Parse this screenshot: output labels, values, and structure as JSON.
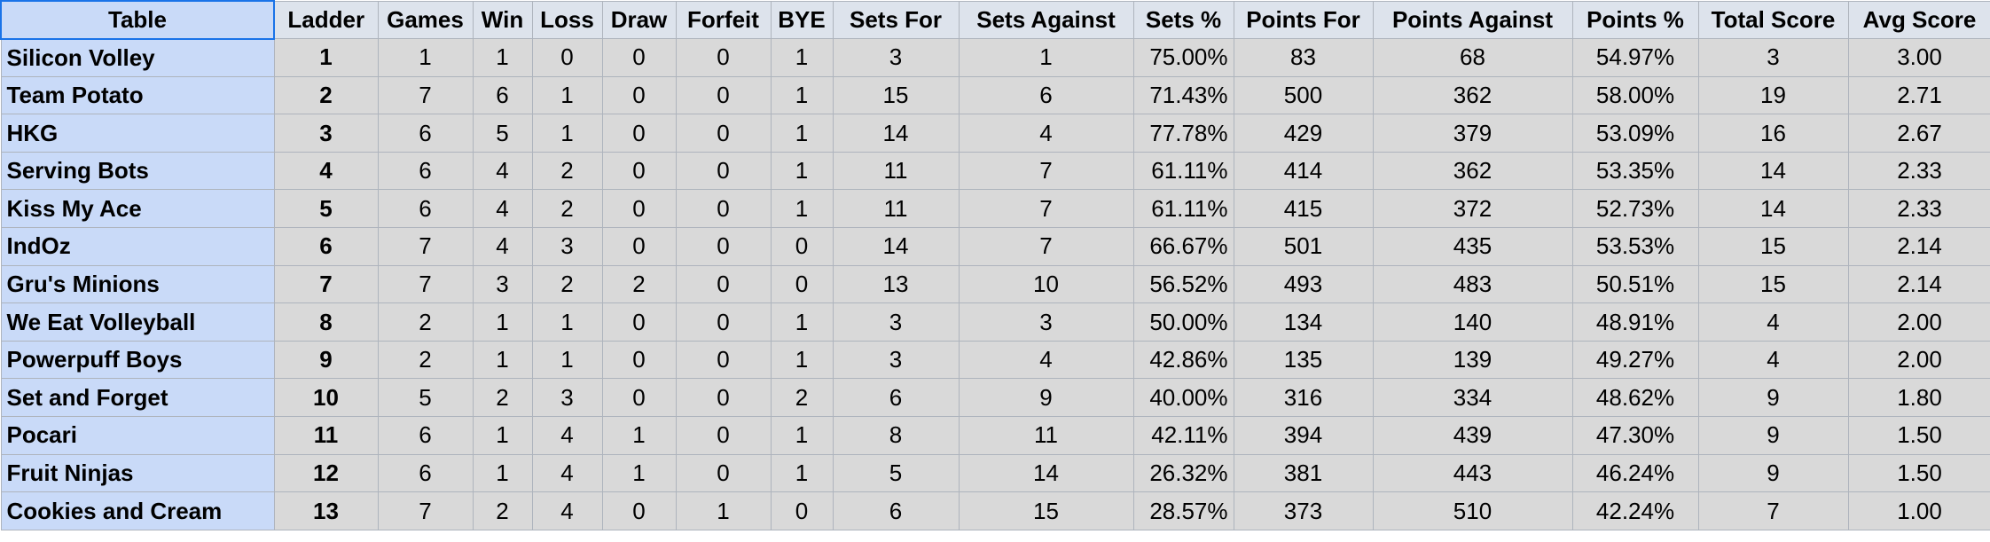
{
  "header": {
    "columns": [
      "Table",
      "Ladder",
      "Games",
      "Win",
      "Loss",
      "Draw",
      "Forfeit",
      "BYE",
      "Sets For",
      "Sets Against",
      "Sets %",
      "Points For",
      "Points Against",
      "Points %",
      "Total Score",
      "Avg Score"
    ]
  },
  "table": {
    "rows": [
      [
        "Silicon Volley",
        "1",
        "1",
        "1",
        "0",
        "0",
        "0",
        "1",
        "3",
        "1",
        "75.00%",
        "83",
        "68",
        "54.97%",
        "3",
        "3.00"
      ],
      [
        "Team Potato",
        "2",
        "7",
        "6",
        "1",
        "0",
        "0",
        "1",
        "15",
        "6",
        "71.43%",
        "500",
        "362",
        "58.00%",
        "19",
        "2.71"
      ],
      [
        "HKG",
        "3",
        "6",
        "5",
        "1",
        "0",
        "0",
        "1",
        "14",
        "4",
        "77.78%",
        "429",
        "379",
        "53.09%",
        "16",
        "2.67"
      ],
      [
        "Serving Bots",
        "4",
        "6",
        "4",
        "2",
        "0",
        "0",
        "1",
        "11",
        "7",
        "61.11%",
        "414",
        "362",
        "53.35%",
        "14",
        "2.33"
      ],
      [
        "Kiss My Ace",
        "5",
        "6",
        "4",
        "2",
        "0",
        "0",
        "1",
        "11",
        "7",
        "61.11%",
        "415",
        "372",
        "52.73%",
        "14",
        "2.33"
      ],
      [
        "IndOz",
        "6",
        "7",
        "4",
        "3",
        "0",
        "0",
        "0",
        "14",
        "7",
        "66.67%",
        "501",
        "435",
        "53.53%",
        "15",
        "2.14"
      ],
      [
        "Gru's Minions",
        "7",
        "7",
        "3",
        "2",
        "2",
        "0",
        "0",
        "13",
        "10",
        "56.52%",
        "493",
        "483",
        "50.51%",
        "15",
        "2.14"
      ],
      [
        "We Eat Volleyball",
        "8",
        "2",
        "1",
        "1",
        "0",
        "0",
        "1",
        "3",
        "3",
        "50.00%",
        "134",
        "140",
        "48.91%",
        "4",
        "2.00"
      ],
      [
        "Powerpuff Boys",
        "9",
        "2",
        "1",
        "1",
        "0",
        "0",
        "1",
        "3",
        "4",
        "42.86%",
        "135",
        "139",
        "49.27%",
        "4",
        "2.00"
      ],
      [
        "Set and Forget",
        "10",
        "5",
        "2",
        "3",
        "0",
        "0",
        "2",
        "6",
        "9",
        "40.00%",
        "316",
        "334",
        "48.62%",
        "9",
        "1.80"
      ],
      [
        "Pocari",
        "11",
        "6",
        "1",
        "4",
        "1",
        "0",
        "1",
        "8",
        "11",
        "42.11%",
        "394",
        "439",
        "47.30%",
        "9",
        "1.50"
      ],
      [
        "Fruit Ninjas",
        "12",
        "6",
        "1",
        "4",
        "1",
        "0",
        "1",
        "5",
        "14",
        "26.32%",
        "381",
        "443",
        "46.24%",
        "9",
        "1.50"
      ],
      [
        "Cookies and Cream",
        "13",
        "7",
        "2",
        "4",
        "0",
        "1",
        "0",
        "6",
        "15",
        "28.57%",
        "373",
        "510",
        "42.24%",
        "7",
        "1.00"
      ]
    ]
  }
}
